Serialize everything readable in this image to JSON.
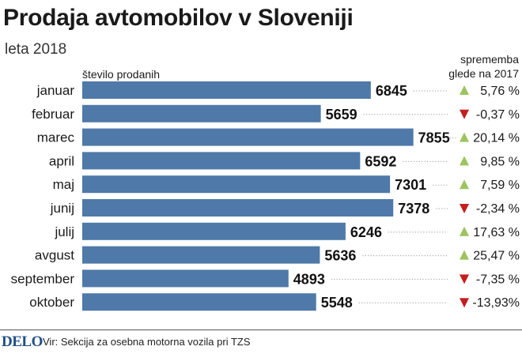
{
  "header": {
    "title": "Prodaja avtomobilov v Sloveniji",
    "subtitle": "leta 2018"
  },
  "labels": {
    "bar_column": "število prodanih",
    "change_column_line1": "sprememba",
    "change_column_line2": "glede na 2017"
  },
  "footer": {
    "logo": "DELO",
    "source": "Vir: Sekcija za osebna motorna vozila pri TZS"
  },
  "colors": {
    "bar": "#4f79a8",
    "up": "#9cc45e",
    "down": "#c41e1e",
    "leader": "#9a9a9a"
  },
  "chart_data": {
    "type": "bar",
    "orientation": "horizontal",
    "categories": [
      "januar",
      "februar",
      "marec",
      "april",
      "maj",
      "junij",
      "julij",
      "avgust",
      "september",
      "oktober"
    ],
    "values": [
      6845,
      5659,
      7855,
      6592,
      7301,
      7378,
      6246,
      5636,
      4893,
      5548
    ],
    "value_labels": [
      "6845",
      "5659",
      "7855",
      "6592",
      "7301",
      "7378",
      "6246",
      "5636",
      "4893",
      "5548"
    ],
    "change": [
      5.76,
      -0.37,
      20.14,
      9.85,
      7.59,
      -2.34,
      17.63,
      25.47,
      -7.35,
      -13.93
    ],
    "change_labels": [
      "5,76 %",
      "-0,37 %",
      "20,14 %",
      "9,85 %",
      "7,59 %",
      "-2,34 %",
      "17,63 %",
      "25,47 %",
      "-7,35 %",
      "-13,93%"
    ],
    "direction": [
      "up",
      "down",
      "up",
      "up",
      "up",
      "down",
      "up",
      "up",
      "down",
      "down"
    ],
    "title": "Prodaja avtomobilov v Sloveniji",
    "subtitle": "leta 2018",
    "xlabel": "število prodanih",
    "xlim": [
      0,
      7855
    ],
    "grid": false
  }
}
